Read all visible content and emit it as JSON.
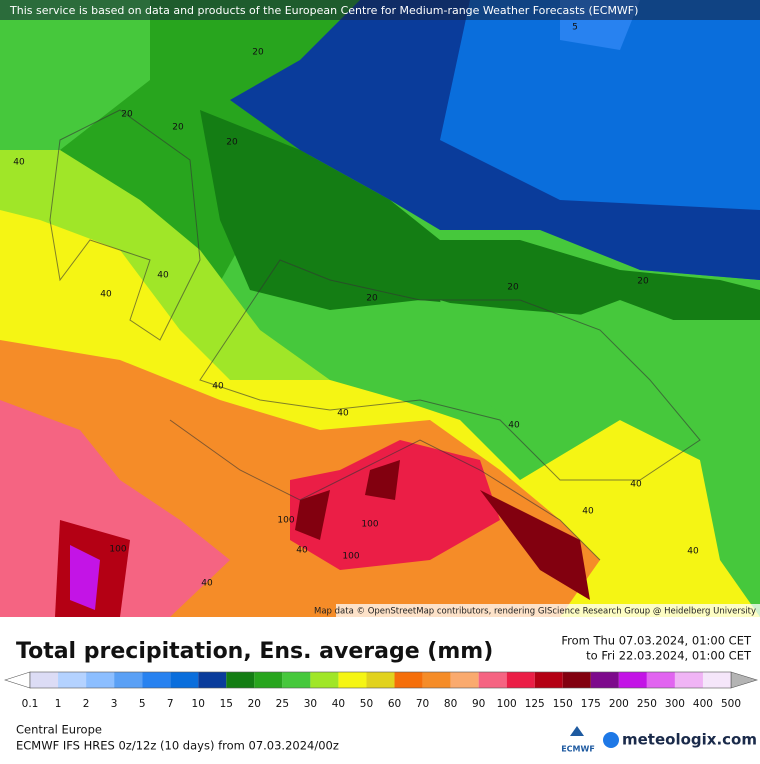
{
  "header": {
    "notice": "This service is based on data and products of the European Centre for Medium-range Weather Forecasts (ECMWF)"
  },
  "map": {
    "attribution": "Map data © OpenStreetMap contributors, rendering GIScience Research Group @ Heidelberg University",
    "contour_labels": [
      "20",
      "20",
      "20",
      "20",
      "40",
      "5",
      "40",
      "40",
      "20",
      "20",
      "20",
      "40",
      "40",
      "40",
      "40",
      "40",
      "100",
      "100",
      "40",
      "100",
      "100",
      "40",
      "40"
    ]
  },
  "footer": {
    "title": "Total precipitation, Ens. average (mm)",
    "period_from": "From Thu 07.03.2024, 01:00 CET",
    "period_to": "to Fri 22.03.2024, 01:00 CET",
    "region": "Central Europe",
    "model": "ECMWF IFS HRES 0z/12z (10 days) from 07.03.2024/00z",
    "ecmwf_logo": "ECMWF",
    "brand": "meteologix.com"
  },
  "legend": {
    "ticks": [
      0.1,
      1,
      2,
      3,
      5,
      7,
      10,
      15,
      20,
      25,
      30,
      40,
      50,
      60,
      70,
      80,
      90,
      100,
      125,
      150,
      175,
      200,
      250,
      300,
      400,
      500
    ],
    "colors": [
      "#dcdcf5",
      "#b4d2ff",
      "#8cbeff",
      "#5aa0f5",
      "#2882f0",
      "#0a6edc",
      "#0a3c9b",
      "#147d14",
      "#28a51e",
      "#46c83c",
      "#a0e628",
      "#f5f514",
      "#e1d21e",
      "#f56e0a",
      "#f58c28",
      "#faaa6e",
      "#f56482",
      "#eb1e46",
      "#b40014",
      "#82000f",
      "#7d0a8c",
      "#c314e6",
      "#e164f0",
      "#f0b4f5",
      "#f5e6fa"
    ],
    "under_color": "#ffffff",
    "over_color": "#b4b4b4"
  }
}
